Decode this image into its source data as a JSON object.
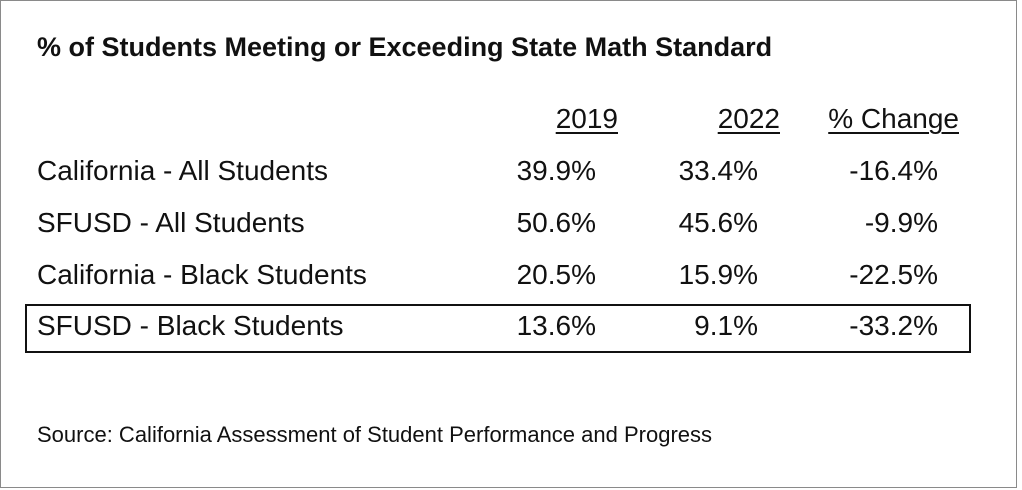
{
  "chart_data": {
    "type": "table",
    "title": "% of Students Meeting or Exceeding State Math Standard",
    "columns": [
      "2019",
      "2022",
      "% Change"
    ],
    "rows": [
      {
        "label": "California - All Students",
        "y2019": "39.9%",
        "y2022": "33.4%",
        "change": "-16.4%"
      },
      {
        "label": "SFUSD - All Students",
        "y2019": "50.6%",
        "y2022": "45.6%",
        "change": "-9.9%"
      },
      {
        "label": "California - Black Students",
        "y2019": "20.5%",
        "y2022": "15.9%",
        "change": "-22.5%"
      },
      {
        "label": "SFUSD - Black Students",
        "y2019": "13.6%",
        "y2022": "9.1%",
        "change": "-33.2%",
        "highlighted": true
      }
    ],
    "source": "Source: California Assessment of Student Performance and Progress"
  }
}
